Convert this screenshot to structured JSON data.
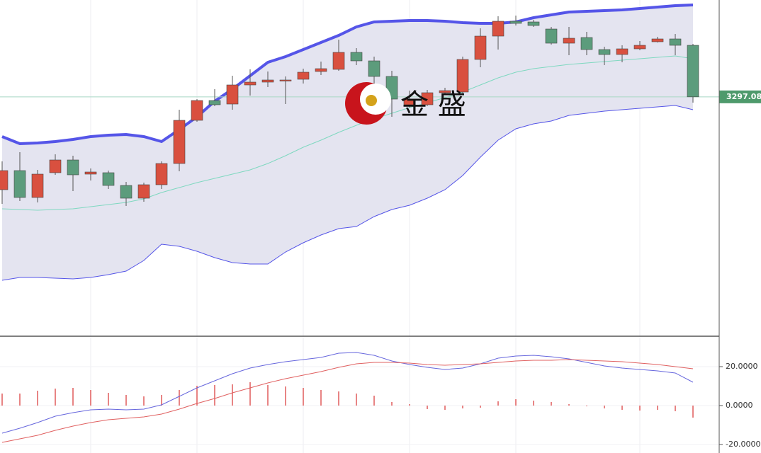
{
  "watermark": "金 盛",
  "chart_data": [
    {
      "type": "candlestick",
      "categories": [
        null,
        null,
        null,
        null,
        null,
        null,
        null,
        null,
        null,
        null,
        null,
        null,
        null,
        null,
        null,
        null,
        null,
        null,
        null,
        null,
        null,
        null,
        null,
        null,
        null,
        null,
        null,
        null,
        null,
        null,
        null,
        null,
        null,
        null,
        null,
        null,
        null,
        null,
        null,
        null
      ],
      "open": [
        3231.5,
        3245,
        3226,
        3243.5,
        3252.5,
        3242.5,
        3243.5,
        3234.5,
        3225.5,
        3235,
        3250,
        3280.5,
        3294.5,
        3292,
        3305.5,
        3307.5,
        3308.5,
        3309.5,
        3315,
        3316.5,
        3328.5,
        3322.5,
        3311.5,
        3291.5,
        3291.5,
        3300,
        3300.5,
        3323.5,
        3340,
        3350.5,
        3350,
        3345,
        3335,
        3339,
        3330.5,
        3327,
        3331,
        3336,
        3338,
        3333.5
      ],
      "high": [
        3251.5,
        3258,
        3245.5,
        3256.5,
        3255.5,
        3246.5,
        3245,
        3237,
        3236.5,
        3251.5,
        3288,
        3295.5,
        3302.5,
        3312,
        3316.5,
        3315,
        3311.5,
        3317,
        3322,
        3337.5,
        3331.5,
        3325.5,
        3315.5,
        3301.5,
        3302,
        3303.5,
        3325.5,
        3345.5,
        3354,
        3354.5,
        3351.5,
        3346.5,
        3346.5,
        3343,
        3332.5,
        3333.5,
        3336.5,
        3339.5,
        3341.5,
        3334.5
      ],
      "low": [
        3221.5,
        3223.5,
        3222.5,
        3242,
        3230.5,
        3238,
        3232,
        3220,
        3223,
        3232,
        3244.5,
        3279.5,
        3290.5,
        3288,
        3298,
        3304,
        3292,
        3306.5,
        3312.5,
        3315.5,
        3319.5,
        3295.5,
        3283,
        3289.5,
        3290.5,
        3298.5,
        3299,
        3318,
        3330.5,
        3347.5,
        3346.5,
        3334,
        3326.5,
        3326.5,
        3319.5,
        3321.5,
        3330,
        3335.5,
        3326.5,
        3293
      ],
      "close": [
        3245,
        3226,
        3242.5,
        3252.5,
        3242,
        3244,
        3234.5,
        3225.5,
        3235,
        3250,
        3280.5,
        3294.5,
        3291.5,
        3305.5,
        3307.5,
        3309,
        3309,
        3314.5,
        3317,
        3328.5,
        3322.5,
        3311.5,
        3295.5,
        3295.5,
        3300,
        3301.5,
        3323.5,
        3340,
        3350.5,
        3349,
        3347.5,
        3335,
        3338.5,
        3330.5,
        3327,
        3331,
        3333.5,
        3338,
        3333.5,
        3297.08
      ],
      "up_color": "#d9503f",
      "down_color": "#5c9c7c",
      "band_fill": "#e4e4f0",
      "series": [
        {
          "color": "#5555e8",
          "values": [
            3269,
            3264,
            3264.5,
            3265.5,
            3267,
            3269,
            3270,
            3270.5,
            3269,
            3265.5,
            3274,
            3283,
            3294,
            3302.5,
            3312,
            3321.5,
            3325.5,
            3330.5,
            3335.5,
            3340.5,
            3346.5,
            3350,
            3350.5,
            3351,
            3351,
            3350.5,
            3349.5,
            3349,
            3349,
            3350,
            3353,
            3355,
            3357,
            3357.5,
            3358,
            3358.5,
            3359.5,
            3360.5,
            3361.5,
            3362
          ]
        },
        {
          "color": "#7fd8c0",
          "values": [
            3218,
            3217.5,
            3217,
            3217.5,
            3218,
            3219.5,
            3221,
            3222.5,
            3225,
            3229.5,
            3233,
            3236.5,
            3239.5,
            3242.5,
            3245.5,
            3250,
            3255.5,
            3261.5,
            3266.5,
            3272,
            3277,
            3281.5,
            3285.5,
            3289.5,
            3293,
            3296.5,
            3300.5,
            3305.5,
            3310.5,
            3314.5,
            3317,
            3318.5,
            3320,
            3321,
            3322,
            3323,
            3324,
            3325,
            3326,
            3324
          ]
        },
        {
          "color": "#5555e8",
          "values": [
            3167.5,
            3169.5,
            3169.5,
            3169,
            3168.5,
            3169.5,
            3171.5,
            3174,
            3181.5,
            3193,
            3191.5,
            3188,
            3183.5,
            3180,
            3179,
            3179,
            3187.5,
            3194,
            3199.5,
            3204,
            3205.5,
            3212.5,
            3217.5,
            3220.5,
            3225.5,
            3231.5,
            3241.5,
            3254.5,
            3266.5,
            3274.5,
            3278,
            3280,
            3284,
            3285.5,
            3287,
            3288,
            3289,
            3290,
            3291,
            3288
          ]
        }
      ],
      "ylim": [
        3128,
        3365.5
      ],
      "last_price": {
        "value": 3297.08,
        "label": "3297.080"
      },
      "last_price_color": "#4e9a6c"
    },
    {
      "type": "macd",
      "categories": [
        null,
        null,
        null,
        null,
        null,
        null,
        null,
        null,
        null,
        null,
        null,
        null,
        null,
        null,
        null,
        null,
        null,
        null,
        null,
        null,
        null,
        null,
        null,
        null,
        null,
        null,
        null,
        null,
        null,
        null,
        null,
        null,
        null,
        null,
        null,
        null,
        null,
        null,
        null,
        null
      ],
      "histogram": {
        "color": "#e05a5a",
        "values": [
          6.18,
          6.18,
          7.64,
          8.73,
          9.09,
          8.0,
          6.55,
          5.45,
          4.73,
          5.45,
          8.0,
          10.18,
          10.55,
          10.91,
          12.0,
          10.55,
          9.82,
          9.09,
          8.0,
          7.27,
          6.18,
          5.09,
          1.82,
          0.73,
          -1.82,
          -2.18,
          -1.45,
          -1.09,
          2.18,
          3.27,
          2.55,
          1.82,
          0.73,
          -0.36,
          -1.45,
          -2.18,
          -2.55,
          -2.18,
          -2.91,
          -6.18
        ]
      },
      "series": [
        {
          "color": "#6666dd",
          "values": [
            -14.18,
            -11.64,
            -8.73,
            -5.45,
            -3.64,
            -2.18,
            -1.82,
            -2.18,
            -1.82,
            0.36,
            4.73,
            9.09,
            12.73,
            16.36,
            19.27,
            21.09,
            22.55,
            23.64,
            24.73,
            26.91,
            27.27,
            25.82,
            22.91,
            21.09,
            19.64,
            18.55,
            19.27,
            21.45,
            24.36,
            25.45,
            25.82,
            25.09,
            24.0,
            22.18,
            20.36,
            19.27,
            18.55,
            17.82,
            16.73,
            12.0
          ]
        },
        {
          "color": "#e06060",
          "values": [
            -18.91,
            -17.09,
            -15.27,
            -12.73,
            -10.55,
            -8.73,
            -7.27,
            -6.55,
            -5.82,
            -4.36,
            -1.82,
            1.09,
            3.64,
            6.55,
            9.09,
            11.64,
            13.82,
            15.64,
            17.45,
            19.64,
            21.45,
            22.18,
            22.18,
            21.82,
            21.09,
            20.73,
            21.09,
            21.45,
            22.18,
            22.91,
            23.27,
            23.27,
            23.64,
            23.27,
            22.91,
            22.55,
            21.82,
            21.09,
            20.0,
            18.91
          ]
        }
      ],
      "ylim": [
        -24.36,
        35.27
      ],
      "yticks": [
        {
          "value": 20,
          "label": "20.0000"
        },
        {
          "value": 0,
          "label": "0.0000"
        },
        {
          "value": -20,
          "label": "-20.0000"
        }
      ]
    }
  ]
}
